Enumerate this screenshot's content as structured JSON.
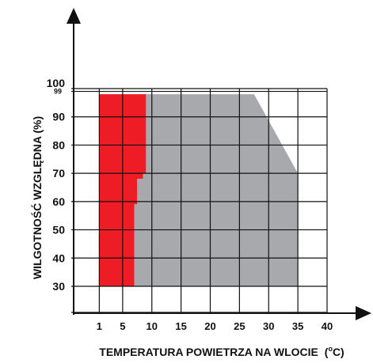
{
  "chart_data": {
    "type": "area",
    "title": "",
    "xlabel": "TEMPERATURA POWIETRZA NA WLOCIE",
    "xlabel_unit_prefix": "(",
    "xlabel_unit_sup": "o",
    "xlabel_unit_suffix": "C)",
    "ylabel": "WILGOTNOŚĆ WZGLĘDNA (%)",
    "xlim": [
      0,
      40
    ],
    "ylim": [
      30,
      100
    ],
    "x_ticks": [
      1,
      5,
      10,
      15,
      20,
      25,
      30,
      35,
      40
    ],
    "y_ticks": [
      30,
      40,
      50,
      60,
      70,
      80,
      90,
      99,
      100
    ],
    "grid": true,
    "colors": {
      "red_region": "#ee1c25",
      "gray_region": "#a7a9ac",
      "axes": "#111111"
    },
    "regions": [
      {
        "color_key": "red_region",
        "points": [
          [
            1,
            30
          ],
          [
            7,
            30
          ],
          [
            7,
            59
          ],
          [
            7.5,
            59
          ],
          [
            7.5,
            68
          ],
          [
            8.5,
            68
          ],
          [
            8.5,
            70
          ],
          [
            9,
            70
          ],
          [
            9,
            98
          ],
          [
            1,
            98
          ]
        ]
      },
      {
        "color_key": "gray_region",
        "points": [
          [
            7,
            30
          ],
          [
            35,
            30
          ],
          [
            35,
            70
          ],
          [
            27.5,
            98
          ],
          [
            9,
            98
          ],
          [
            9,
            70
          ],
          [
            8.5,
            70
          ],
          [
            8.5,
            68
          ],
          [
            7.5,
            68
          ],
          [
            7.5,
            59
          ],
          [
            7,
            59
          ]
        ]
      }
    ]
  }
}
